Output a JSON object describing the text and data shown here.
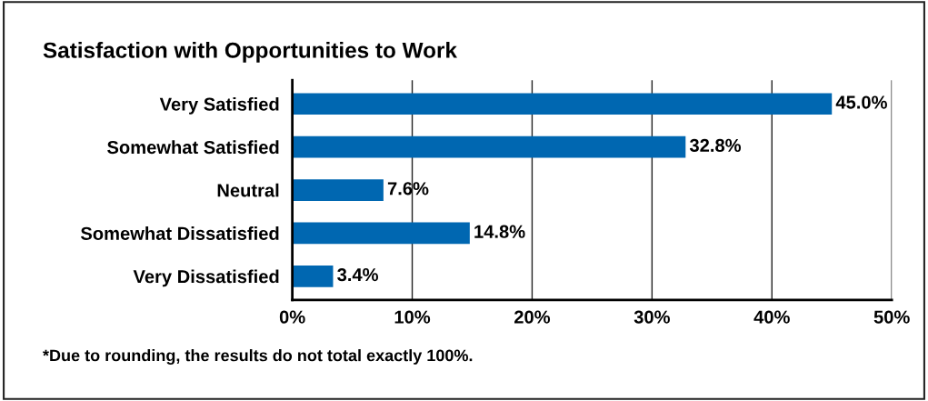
{
  "chart_data": {
    "type": "bar",
    "orientation": "horizontal",
    "title": "Satisfaction with Opportunities to Work",
    "categories": [
      "Very Satisfied",
      "Somewhat Satisfied",
      "Neutral",
      "Somewhat Dissatisfied",
      "Very Dissatisfied"
    ],
    "values": [
      45.0,
      32.8,
      7.6,
      14.8,
      3.4
    ],
    "value_labels": [
      "45.0%",
      "32.8%",
      "7.6%",
      "14.8%",
      "3.4%"
    ],
    "color": "#0067b1",
    "xlim": [
      0,
      50
    ],
    "xticks": [
      {
        "value": 0,
        "label": "0%"
      },
      {
        "value": 10,
        "label": "10%"
      },
      {
        "value": 20,
        "label": "20%"
      },
      {
        "value": 30,
        "label": "30%"
      },
      {
        "value": 40,
        "label": "40%"
      },
      {
        "value": 50,
        "label": "50%"
      }
    ],
    "grid": "x",
    "legend": false,
    "annotations": [
      "*Due to rounding, the results do not total exactly 100%."
    ]
  }
}
